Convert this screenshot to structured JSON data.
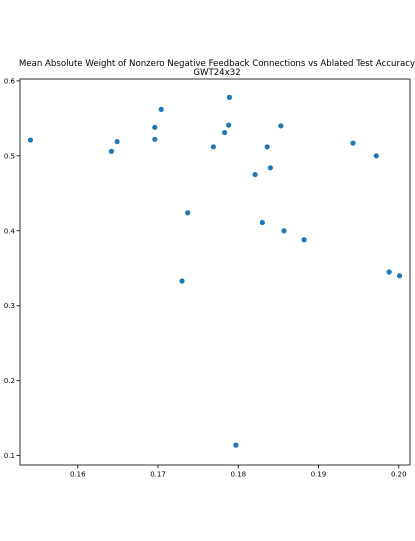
{
  "chart_data": {
    "type": "scatter",
    "title": "Mean Absolute Weight of Nonzero Negative Feedback Connections vs Ablated Test Accuracy",
    "subtitle": "GWT24x32",
    "xlabel": "",
    "ylabel": "",
    "xlim": [
      0.1528,
      0.2014
    ],
    "ylim": [
      0.0875,
      0.6025
    ],
    "x_ticks": [
      0.16,
      0.17,
      0.18,
      0.19,
      0.2
    ],
    "x_tick_labels": [
      "0.16",
      "0.17",
      "0.18",
      "0.19",
      "0.20"
    ],
    "y_ticks": [
      0.1,
      0.2,
      0.3,
      0.4,
      0.5,
      0.6
    ],
    "y_tick_labels": [
      "0.1",
      "0.2",
      "0.3",
      "0.4",
      "0.5",
      "0.6"
    ],
    "grid": false,
    "legend": "none",
    "point_color": "#1f77b4",
    "points": [
      {
        "x": 0.1541,
        "y": 0.521
      },
      {
        "x": 0.1642,
        "y": 0.506
      },
      {
        "x": 0.1649,
        "y": 0.519
      },
      {
        "x": 0.1696,
        "y": 0.538
      },
      {
        "x": 0.1696,
        "y": 0.522
      },
      {
        "x": 0.1704,
        "y": 0.562
      },
      {
        "x": 0.173,
        "y": 0.333
      },
      {
        "x": 0.1737,
        "y": 0.424
      },
      {
        "x": 0.1769,
        "y": 0.512
      },
      {
        "x": 0.1783,
        "y": 0.531
      },
      {
        "x": 0.1788,
        "y": 0.541
      },
      {
        "x": 0.1789,
        "y": 0.578
      },
      {
        "x": 0.1797,
        "y": 0.114
      },
      {
        "x": 0.1821,
        "y": 0.475
      },
      {
        "x": 0.183,
        "y": 0.411
      },
      {
        "x": 0.1836,
        "y": 0.512
      },
      {
        "x": 0.184,
        "y": 0.484
      },
      {
        "x": 0.1853,
        "y": 0.54
      },
      {
        "x": 0.1857,
        "y": 0.4
      },
      {
        "x": 0.1882,
        "y": 0.388
      },
      {
        "x": 0.1943,
        "y": 0.517
      },
      {
        "x": 0.1972,
        "y": 0.5
      },
      {
        "x": 0.1988,
        "y": 0.345
      },
      {
        "x": 0.2001,
        "y": 0.34
      }
    ]
  }
}
